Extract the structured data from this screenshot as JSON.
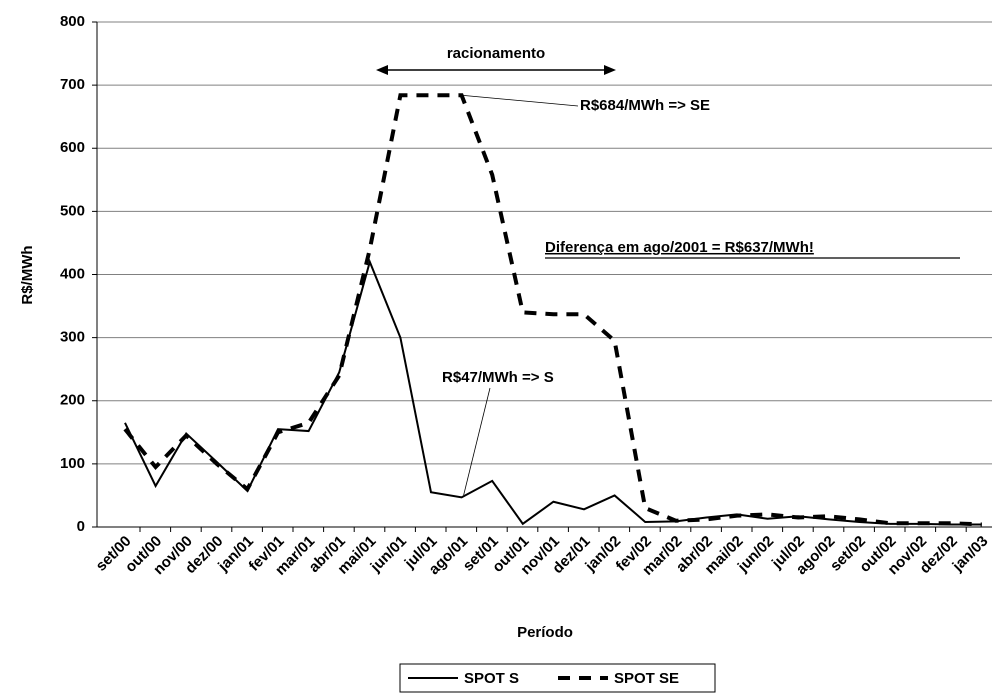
{
  "chart_data": {
    "type": "line",
    "x_label": "Período",
    "y_label": "R$/MWh",
    "categories": [
      "set/00",
      "out/00",
      "nov/00",
      "dez/00",
      "jan/01",
      "fev/01",
      "mar/01",
      "abr/01",
      "mai/01",
      "jun/01",
      "jul/01",
      "ago/01",
      "set/01",
      "out/01",
      "nov/01",
      "dez/01",
      "jan/02",
      "fev/02",
      "mar/02",
      "abr/02",
      "mai/02",
      "jun/02",
      "jul/02",
      "ago/02",
      "set/02",
      "out/02",
      "nov/02",
      "dez/02",
      "jan/03"
    ],
    "series": [
      {
        "name": "SPOT S",
        "color": "#000000",
        "dash": "solid",
        "values": [
          165,
          65,
          148,
          103,
          57,
          155,
          152,
          245,
          420,
          300,
          55,
          47,
          73,
          5,
          40,
          28,
          50,
          8,
          9,
          15,
          20,
          13,
          17,
          12,
          8,
          5,
          5,
          4,
          4
        ]
      },
      {
        "name": "SPOT SE",
        "color": "#000000",
        "dash": "dashed",
        "values": [
          155,
          95,
          145,
          100,
          60,
          150,
          165,
          240,
          440,
          684,
          684,
          684,
          558,
          340,
          337,
          337,
          295,
          30,
          10,
          12,
          18,
          20,
          15,
          17,
          12,
          6,
          6,
          6,
          4
        ]
      }
    ],
    "ylim": [
      0,
      800
    ],
    "yticks": [
      0,
      100,
      200,
      300,
      400,
      500,
      600,
      700,
      800
    ],
    "grid": true,
    "annotations": [
      "racionamento",
      "R$684/MWh => SE",
      "Diferença em ago/2001 = R$637/MWh!",
      "R$47/MWh => S"
    ],
    "legend": "bottom"
  }
}
